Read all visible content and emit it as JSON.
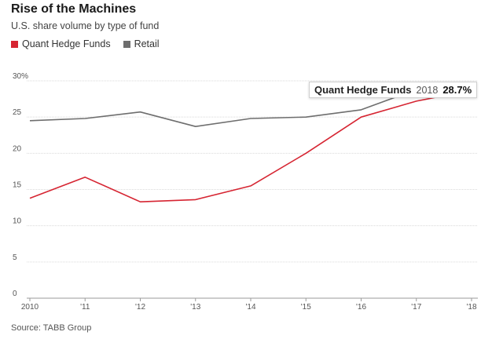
{
  "header": {
    "title": "Rise of the Machines",
    "subtitle": "U.S. share volume by type of fund"
  },
  "legend": {
    "items": [
      {
        "label": "Quant Hedge Funds",
        "color": "#d62532"
      },
      {
        "label": "Retail",
        "color": "#6e6e6e"
      }
    ]
  },
  "source": "Source: TABB Group",
  "tooltip": {
    "series": "Quant Hedge Funds",
    "year": "2018",
    "value": "28.7%"
  },
  "chart_data": {
    "type": "line",
    "x": [
      2010,
      2011,
      2012,
      2013,
      2014,
      2015,
      2016,
      2017,
      2018
    ],
    "x_tick_labels": [
      "2010",
      "'11",
      "'12",
      "'13",
      "'14",
      "'15",
      "'16",
      "'17",
      "'18"
    ],
    "y_tick_labels": [
      "0",
      "5",
      "10",
      "15",
      "20",
      "25",
      "30%"
    ],
    "y_ticks": [
      0,
      5,
      10,
      15,
      20,
      25,
      30
    ],
    "ylim": [
      0,
      30
    ],
    "grid": "horizontal",
    "legend_position": "top-left",
    "series": [
      {
        "name": "Quant Hedge Funds",
        "color": "#d62532",
        "values": [
          13.8,
          16.7,
          13.3,
          13.6,
          15.5,
          20.0,
          25.0,
          27.2,
          28.7
        ]
      },
      {
        "name": "Retail",
        "color": "#6e6e6e",
        "values": [
          24.5,
          24.8,
          25.7,
          23.7,
          24.8,
          25.0,
          26.0,
          28.8,
          27.9
        ]
      }
    ]
  }
}
